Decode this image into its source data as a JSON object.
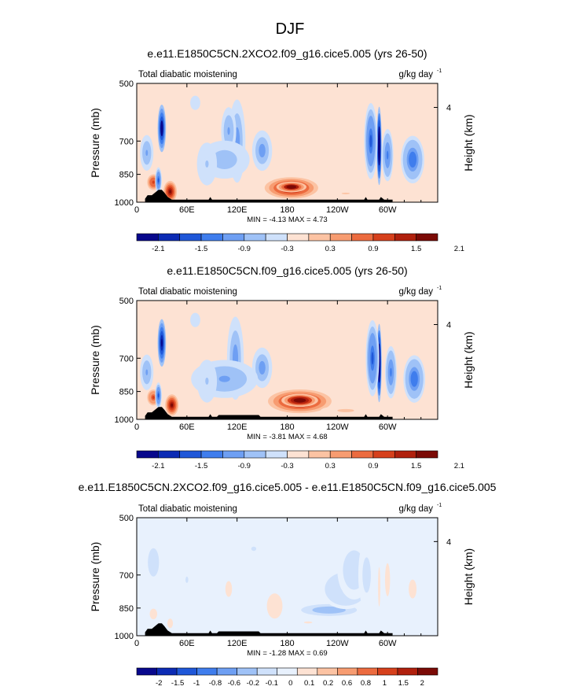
{
  "figure_title": "DJF",
  "colors": {
    "scale_12": [
      "#08088c",
      "#0c2bb4",
      "#1f57d8",
      "#3f7ded",
      "#6e9ff3",
      "#9fc2f7",
      "#cfe1fb",
      "#fde2d3",
      "#fcc3a3",
      "#f79c71",
      "#ec6b3f",
      "#d6401c",
      "#b0200d",
      "#7b0a06"
    ],
    "scale_13": [
      "#08088c",
      "#0c2bb4",
      "#1f57d8",
      "#3f7ded",
      "#6e9ff3",
      "#9fc2f7",
      "#cfe1fb",
      "#e8f1fd",
      "#fde2d3",
      "#fcc3a3",
      "#f79c71",
      "#ec6b3f",
      "#d6401c",
      "#b0200d",
      "#7b0a06"
    ]
  },
  "chart_data": [
    {
      "type": "heatmap",
      "title": "e.e11.E1850C5CN.2XCO2.f09_g16.cice5.005 (yrs 26-50)",
      "left_label": "Total diabatic moistening",
      "units_text": "g/kg day",
      "units_exp": "-1",
      "ylabel": "Pressure (mb)",
      "ylabel_right": "Height (km)",
      "x_ticks": [
        "0",
        "60E",
        "120E",
        "180",
        "120W",
        "60W"
      ],
      "x_tick_values": [
        0,
        60,
        120,
        180,
        240,
        300
      ],
      "xlim": [
        0,
        360
      ],
      "y_ticks": [
        "500",
        "700",
        "850",
        "1000"
      ],
      "y_tick_values": [
        500,
        700,
        850,
        1000
      ],
      "ylim": [
        500,
        1000
      ],
      "y_log": true,
      "right_ticks": [
        "4"
      ],
      "right_tick_values": [
        4
      ],
      "min_label": "MIN =  -4.13  MAX =   4.73",
      "colorbar_labels": [
        "-2.1",
        "-1.5",
        "-0.9",
        "-0.3",
        "0.3",
        "0.9",
        "1.5",
        "2.1"
      ],
      "colorbar_scale": "scale_12",
      "features": [
        {
          "lon": 185,
          "p": 920,
          "val": 2.3,
          "w": 32,
          "h": 90
        },
        {
          "lon": 185,
          "p": 915,
          "val": 2.6,
          "w": 18,
          "h": 45
        },
        {
          "lon": 40,
          "p": 940,
          "val": 2.2,
          "w": 8,
          "h": 90
        },
        {
          "lon": 20,
          "p": 890,
          "val": 1.6,
          "w": 9,
          "h": 80
        },
        {
          "lon": 30,
          "p": 650,
          "val": -2.5,
          "w": 5,
          "h": 200
        },
        {
          "lon": 26,
          "p": 880,
          "val": -1.5,
          "w": 4,
          "h": 110
        },
        {
          "lon": 12,
          "p": 750,
          "val": -0.8,
          "w": 8,
          "h": 150
        },
        {
          "lon": 290,
          "p": 720,
          "val": -3.4,
          "w": 3,
          "h": 330
        },
        {
          "lon": 280,
          "p": 700,
          "val": -1.5,
          "w": 8,
          "h": 320
        },
        {
          "lon": 300,
          "p": 760,
          "val": -1.1,
          "w": 7,
          "h": 220
        },
        {
          "lon": 330,
          "p": 780,
          "val": -1.3,
          "w": 14,
          "h": 200
        },
        {
          "lon": 120,
          "p": 700,
          "val": -1.0,
          "w": 10,
          "h": 350
        },
        {
          "lon": 110,
          "p": 660,
          "val": -0.7,
          "w": 9,
          "h": 200
        },
        {
          "lon": 150,
          "p": 740,
          "val": -0.9,
          "w": 12,
          "h": 170
        },
        {
          "lon": 105,
          "p": 780,
          "val": -0.6,
          "w": 30,
          "h": 160
        },
        {
          "lon": 84,
          "p": 800,
          "val": -0.4,
          "w": 12,
          "h": 180
        },
        {
          "lon": 70,
          "p": 560,
          "val": -0.3,
          "w": 6,
          "h": 60
        },
        {
          "lon": 250,
          "p": 950,
          "val": 0.4,
          "w": 30,
          "h": 40
        }
      ],
      "terrain": [
        [
          10,
          980
        ],
        [
          13,
          960
        ],
        [
          18,
          960
        ],
        [
          22,
          945
        ],
        [
          26,
          930
        ],
        [
          30,
          930
        ],
        [
          33,
          945
        ],
        [
          37,
          970
        ],
        [
          42,
          985
        ],
        [
          86,
          985
        ],
        [
          88,
          970
        ],
        [
          90,
          985
        ],
        [
          272,
          985
        ],
        [
          274,
          970
        ],
        [
          276,
          985
        ],
        [
          290,
          985
        ],
        [
          292,
          970
        ],
        [
          296,
          985
        ],
        [
          304,
          985
        ],
        [
          306,
          985
        ]
      ]
    },
    {
      "type": "heatmap",
      "title": "e.e11.E1850C5CN.f09_g16.cice5.005 (yrs 26-50)",
      "left_label": "Total diabatic moistening",
      "units_text": "g/kg day",
      "units_exp": "-1",
      "ylabel": "Pressure (mb)",
      "ylabel_right": "Height (km)",
      "x_ticks": [
        "0",
        "60E",
        "120E",
        "180",
        "120W",
        "60W"
      ],
      "x_tick_values": [
        0,
        60,
        120,
        180,
        240,
        300
      ],
      "xlim": [
        0,
        360
      ],
      "y_ticks": [
        "500",
        "700",
        "850",
        "1000"
      ],
      "y_tick_values": [
        500,
        700,
        850,
        1000
      ],
      "ylim": [
        500,
        1000
      ],
      "y_log": true,
      "right_ticks": [
        "4"
      ],
      "right_tick_values": [
        4
      ],
      "min_label": "MIN =  -3.81  MAX =   4.68",
      "colorbar_labels": [
        "-2.1",
        "-1.5",
        "-0.9",
        "-0.3",
        "0.3",
        "0.9",
        "1.5",
        "2.1"
      ],
      "colorbar_scale": "scale_12",
      "features": [
        {
          "lon": 195,
          "p": 900,
          "val": 2.7,
          "w": 38,
          "h": 100
        },
        {
          "lon": 195,
          "p": 895,
          "val": 2.8,
          "w": 22,
          "h": 55
        },
        {
          "lon": 42,
          "p": 920,
          "val": 2.1,
          "w": 8,
          "h": 90
        },
        {
          "lon": 20,
          "p": 880,
          "val": 1.5,
          "w": 9,
          "h": 80
        },
        {
          "lon": 30,
          "p": 640,
          "val": -2.4,
          "w": 5,
          "h": 200
        },
        {
          "lon": 26,
          "p": 870,
          "val": -1.4,
          "w": 4,
          "h": 110
        },
        {
          "lon": 12,
          "p": 760,
          "val": -0.8,
          "w": 8,
          "h": 150
        },
        {
          "lon": 290,
          "p": 720,
          "val": -3.4,
          "w": 3,
          "h": 330
        },
        {
          "lon": 282,
          "p": 700,
          "val": -1.4,
          "w": 8,
          "h": 320
        },
        {
          "lon": 304,
          "p": 760,
          "val": -1.2,
          "w": 7,
          "h": 220
        },
        {
          "lon": 332,
          "p": 790,
          "val": -1.3,
          "w": 13,
          "h": 200
        },
        {
          "lon": 118,
          "p": 700,
          "val": -0.9,
          "w": 10,
          "h": 350
        },
        {
          "lon": 150,
          "p": 740,
          "val": -0.9,
          "w": 12,
          "h": 170
        },
        {
          "lon": 105,
          "p": 790,
          "val": -0.7,
          "w": 40,
          "h": 160
        },
        {
          "lon": 84,
          "p": 800,
          "val": -0.4,
          "w": 12,
          "h": 180
        },
        {
          "lon": 70,
          "p": 560,
          "val": -0.3,
          "w": 6,
          "h": 60
        },
        {
          "lon": 250,
          "p": 950,
          "val": 0.5,
          "w": 30,
          "h": 40
        }
      ],
      "terrain": [
        [
          10,
          980
        ],
        [
          13,
          960
        ],
        [
          18,
          960
        ],
        [
          22,
          945
        ],
        [
          26,
          930
        ],
        [
          30,
          930
        ],
        [
          33,
          945
        ],
        [
          37,
          970
        ],
        [
          42,
          985
        ],
        [
          86,
          985
        ],
        [
          88,
          970
        ],
        [
          90,
          985
        ],
        [
          96,
          985
        ],
        [
          98,
          975
        ],
        [
          146,
          975
        ],
        [
          148,
          985
        ],
        [
          272,
          985
        ],
        [
          274,
          970
        ],
        [
          276,
          985
        ],
        [
          290,
          985
        ],
        [
          292,
          970
        ],
        [
          296,
          985
        ],
        [
          304,
          985
        ],
        [
          306,
          985
        ]
      ]
    },
    {
      "type": "heatmap",
      "title": "e.e11.E1850C5CN.2XCO2.f09_g16.cice5.005 - e.e11.E1850C5CN.f09_g16.cice5.005",
      "left_label": "Total diabatic moistening",
      "units_text": "g/kg day",
      "units_exp": "-1",
      "ylabel": "Pressure (mb)",
      "ylabel_right": "Height (km)",
      "x_ticks": [
        "0",
        "60E",
        "120E",
        "180",
        "120W",
        "60W"
      ],
      "x_tick_values": [
        0,
        60,
        120,
        180,
        240,
        300
      ],
      "xlim": [
        0,
        360
      ],
      "y_ticks": [
        "500",
        "700",
        "850",
        "1000"
      ],
      "y_tick_values": [
        500,
        700,
        850,
        1000
      ],
      "ylim": [
        500,
        1000
      ],
      "y_log": true,
      "right_ticks": [
        "4"
      ],
      "right_tick_values": [
        4
      ],
      "min_label": "MIN =  -1.28  MAX =   0.69",
      "colorbar_labels": [
        "-2",
        "-1.5",
        "-1",
        "-0.8",
        "-0.6",
        "-0.2",
        "-0.1",
        "0",
        "0.1",
        "0.2",
        "0.6",
        "0.8",
        "1",
        "1.5",
        "2"
      ],
      "colorbar_scale": "scale_13",
      "features": [
        {
          "lon": 230,
          "p": 860,
          "val": -0.7,
          "w": 40,
          "h": 60
        },
        {
          "lon": 250,
          "p": 760,
          "val": -0.5,
          "w": 30,
          "h": 170
        },
        {
          "lon": 260,
          "p": 680,
          "val": -0.35,
          "w": 20,
          "h": 250
        },
        {
          "lon": 275,
          "p": 700,
          "val": -0.25,
          "w": 10,
          "h": 300
        },
        {
          "lon": 165,
          "p": 840,
          "val": 0.3,
          "w": 14,
          "h": 160
        },
        {
          "lon": 205,
          "p": 925,
          "val": 0.15,
          "w": 30,
          "h": 50
        },
        {
          "lon": 20,
          "p": 650,
          "val": -0.35,
          "w": 10,
          "h": 180
        },
        {
          "lon": 20,
          "p": 880,
          "val": 0.25,
          "w": 9,
          "h": 90
        },
        {
          "lon": 40,
          "p": 930,
          "val": 0.3,
          "w": 5,
          "h": 60
        },
        {
          "lon": 110,
          "p": 760,
          "val": 0.2,
          "w": 12,
          "h": 200
        },
        {
          "lon": 90,
          "p": 700,
          "val": 0.12,
          "w": 12,
          "h": 180
        },
        {
          "lon": 60,
          "p": 720,
          "val": -0.15,
          "w": 10,
          "h": 160
        },
        {
          "lon": 300,
          "p": 720,
          "val": 0.25,
          "w": 6,
          "h": 280
        },
        {
          "lon": 330,
          "p": 760,
          "val": 0.2,
          "w": 14,
          "h": 240
        },
        {
          "lon": 290,
          "p": 750,
          "val": 0.3,
          "w": 2,
          "h": 250
        },
        {
          "lon": 140,
          "p": 600,
          "val": -0.15,
          "w": 18,
          "h": 110
        }
      ],
      "terrain": [
        [
          10,
          980
        ],
        [
          13,
          960
        ],
        [
          18,
          960
        ],
        [
          22,
          945
        ],
        [
          26,
          930
        ],
        [
          30,
          930
        ],
        [
          33,
          945
        ],
        [
          37,
          970
        ],
        [
          42,
          985
        ],
        [
          86,
          985
        ],
        [
          88,
          970
        ],
        [
          90,
          985
        ],
        [
          96,
          985
        ],
        [
          98,
          975
        ],
        [
          146,
          975
        ],
        [
          148,
          985
        ],
        [
          272,
          985
        ],
        [
          274,
          970
        ],
        [
          276,
          985
        ],
        [
          290,
          985
        ],
        [
          292,
          970
        ],
        [
          296,
          985
        ],
        [
          304,
          985
        ],
        [
          306,
          985
        ]
      ]
    }
  ]
}
